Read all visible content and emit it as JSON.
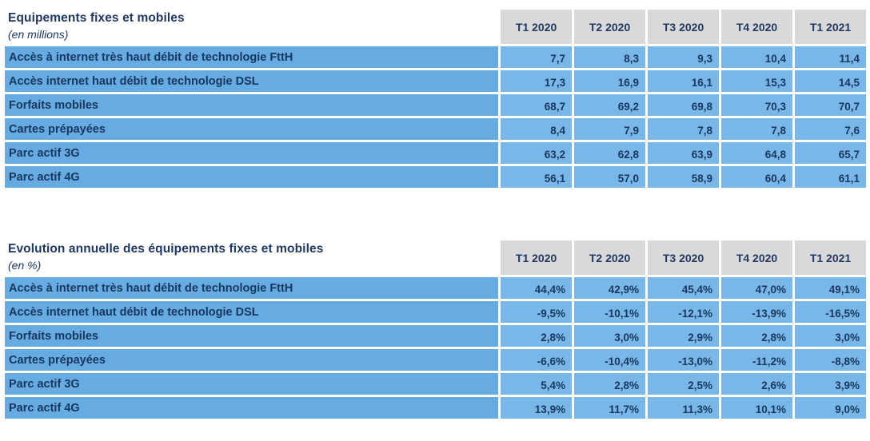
{
  "colors": {
    "text_navy": "#1f3864",
    "header_gray": "#d9d9d9",
    "label_blue": "#66abe1",
    "value_blue": "#7ab7e9"
  },
  "tables": [
    {
      "title": "Equipements fixes et mobiles",
      "subtitle": "(en millions)",
      "columns": [
        "T1 2020",
        "T2 2020",
        "T3 2020",
        "T4 2020",
        "T1 2021"
      ],
      "rows": [
        {
          "label": "Accès à internet très haut débit de technologie FttH",
          "values": [
            "7,7",
            "8,3",
            "9,3",
            "10,4",
            "11,4"
          ]
        },
        {
          "label": "Accès internet haut débit de technologie DSL",
          "values": [
            "17,3",
            "16,9",
            "16,1",
            "15,3",
            "14,5"
          ]
        },
        {
          "label": "Forfaits mobiles",
          "values": [
            "68,7",
            "69,2",
            "69,8",
            "70,3",
            "70,7"
          ]
        },
        {
          "label": "Cartes prépayées",
          "values": [
            "8,4",
            "7,9",
            "7,8",
            "7,8",
            "7,6"
          ]
        },
        {
          "label": "Parc actif 3G",
          "values": [
            "63,2",
            "62,8",
            "63,9",
            "64,8",
            "65,7"
          ]
        },
        {
          "label": "Parc actif 4G",
          "values": [
            "56,1",
            "57,0",
            "58,9",
            "60,4",
            "61,1"
          ]
        }
      ]
    },
    {
      "title": "Evolution annuelle des équipements fixes et mobiles",
      "subtitle": "(en %)",
      "columns": [
        "T1 2020",
        "T2 2020",
        "T3 2020",
        "T4 2020",
        "T1 2021"
      ],
      "rows": [
        {
          "label": "Accès à internet très haut débit de technologie FttH",
          "values": [
            "44,4%",
            "42,9%",
            "45,4%",
            "47,0%",
            "49,1%"
          ]
        },
        {
          "label": "Accès internet haut débit de technologie DSL",
          "values": [
            "-9,5%",
            "-10,1%",
            "-12,1%",
            "-13,9%",
            "-16,5%"
          ]
        },
        {
          "label": "Forfaits mobiles",
          "values": [
            "2,8%",
            "3,0%",
            "2,9%",
            "2,8%",
            "3,0%"
          ]
        },
        {
          "label": "Cartes prépayées",
          "values": [
            "-6,6%",
            "-10,4%",
            "-13,0%",
            "-11,2%",
            "-8,8%"
          ]
        },
        {
          "label": "Parc actif 3G",
          "values": [
            "5,4%",
            "2,8%",
            "2,5%",
            "2,6%",
            "3,9%"
          ]
        },
        {
          "label": "Parc actif 4G",
          "values": [
            "13,9%",
            "11,7%",
            "11,3%",
            "10,1%",
            "9,0%"
          ]
        }
      ]
    }
  ]
}
